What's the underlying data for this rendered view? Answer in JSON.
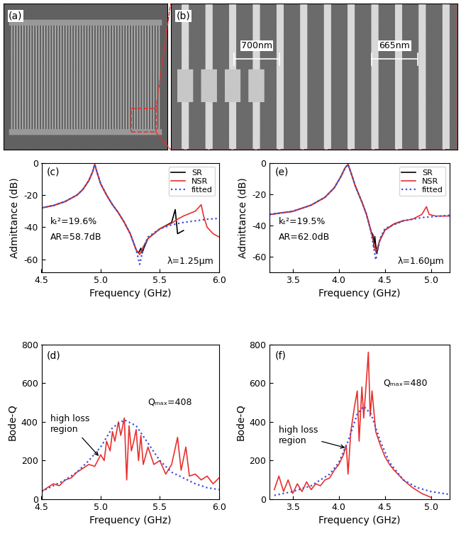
{
  "images": [
    {
      "panel": "(a)"
    },
    {
      "panel": "(b)",
      "annotations": [
        "700nm",
        "665nm"
      ]
    }
  ],
  "chart_data": [
    {
      "type": "line",
      "panel": "(c)",
      "x_label": "Frequency (GHz)",
      "y_label": "Admittance (dB)",
      "xlim": [
        4.5,
        6.0
      ],
      "xticks": [
        4.5,
        5.0,
        5.5,
        6.0
      ],
      "ylim": [
        -68,
        0
      ],
      "yticks": [
        -60,
        -40,
        -20,
        0
      ],
      "legend": "upper right",
      "annotations": [
        "kₜ²=19.6%",
        "AR=58.7dB",
        "λ=1.25μm"
      ],
      "series": [
        {
          "name": "SR",
          "color": "#000000",
          "line_style": "solid",
          "x": [
            4.5,
            4.6,
            4.7,
            4.8,
            4.85,
            4.9,
            4.93,
            4.95,
            4.97,
            5.0,
            5.05,
            5.1,
            5.15,
            5.2,
            5.25,
            5.3,
            5.32,
            5.34,
            5.35,
            5.37,
            5.4,
            5.5,
            5.6,
            5.63,
            5.65,
            5.7
          ],
          "values": [
            -28,
            -26.5,
            -24,
            -20,
            -16.5,
            -11,
            -6,
            -1,
            -6,
            -13,
            -20,
            -26,
            -31,
            -37,
            -44,
            -54,
            -56,
            -53,
            -56,
            -52,
            -47,
            -41,
            -37,
            -29,
            -44,
            -42
          ]
        },
        {
          "name": "NSR",
          "color": "#e8312f",
          "line_style": "solid",
          "x": [
            4.5,
            4.6,
            4.7,
            4.8,
            4.85,
            4.9,
            4.93,
            4.95,
            4.97,
            5.0,
            5.05,
            5.1,
            5.15,
            5.2,
            5.25,
            5.3,
            5.33,
            5.36,
            5.4,
            5.5,
            5.6,
            5.65,
            5.7,
            5.8,
            5.85,
            5.87,
            5.9,
            5.95,
            6.0
          ],
          "values": [
            -28,
            -26.5,
            -24,
            -20,
            -16.5,
            -11,
            -6,
            -1,
            -6,
            -13,
            -20,
            -26,
            -31,
            -37,
            -44,
            -54,
            -57,
            -52,
            -47,
            -41,
            -37.5,
            -35,
            -33,
            -30,
            -26,
            -33,
            -40,
            -44,
            -46
          ]
        },
        {
          "name": "fitted",
          "color": "#3a4fd8",
          "line_style": "dotted",
          "x": [
            4.5,
            4.6,
            4.7,
            4.8,
            4.85,
            4.9,
            4.93,
            4.95,
            4.97,
            5.0,
            5.05,
            5.1,
            5.15,
            5.2,
            5.25,
            5.3,
            5.33,
            5.36,
            5.4,
            5.5,
            5.6,
            5.7,
            5.8,
            5.9,
            6.0
          ],
          "values": [
            -28,
            -26.5,
            -24,
            -20,
            -16.5,
            -11,
            -6,
            -1,
            -6,
            -13,
            -20,
            -26,
            -31,
            -37,
            -44,
            -54,
            -63,
            -53,
            -46,
            -41,
            -38.5,
            -37,
            -36,
            -35,
            -34.5
          ]
        }
      ]
    },
    {
      "type": "line",
      "panel": "(d)",
      "x_label": "Frequency (GHz)",
      "y_label": "Bode-Q",
      "xlim": [
        4.5,
        6.0
      ],
      "xticks": [
        4.5,
        5.0,
        5.5,
        6.0
      ],
      "ylim": [
        0,
        800
      ],
      "yticks": [
        0,
        200,
        400,
        600,
        800
      ],
      "annotations": [
        "high loss\nregion",
        "Qₘₐₓ=408"
      ],
      "series": [
        {
          "color": "#e8312f",
          "line_style": "solid",
          "x": [
            4.5,
            4.55,
            4.6,
            4.65,
            4.7,
            4.75,
            4.8,
            4.85,
            4.9,
            4.95,
            5.0,
            5.03,
            5.05,
            5.08,
            5.1,
            5.12,
            5.15,
            5.17,
            5.2,
            5.22,
            5.24,
            5.26,
            5.28,
            5.3,
            5.32,
            5.34,
            5.36,
            5.4,
            5.45,
            5.5,
            5.55,
            5.6,
            5.65,
            5.68,
            5.72,
            5.75,
            5.8,
            5.85,
            5.9,
            5.95,
            6.0
          ],
          "values": [
            40,
            60,
            80,
            70,
            100,
            110,
            140,
            160,
            180,
            170,
            230,
            200,
            300,
            250,
            350,
            300,
            400,
            330,
            420,
            100,
            380,
            250,
            300,
            360,
            200,
            330,
            180,
            270,
            180,
            200,
            130,
            180,
            320,
            150,
            270,
            120,
            130,
            100,
            120,
            80,
            110
          ]
        },
        {
          "color": "#3a4fd8",
          "line_style": "dotted",
          "x": [
            4.5,
            4.6,
            4.7,
            4.8,
            4.9,
            5.0,
            5.1,
            5.2,
            5.3,
            5.4,
            5.5,
            5.6,
            5.7,
            5.8,
            5.9,
            6.0
          ],
          "values": [
            40,
            70,
            100,
            140,
            200,
            270,
            370,
            410,
            380,
            290,
            200,
            140,
            110,
            80,
            60,
            50
          ]
        }
      ]
    },
    {
      "type": "line",
      "panel": "(e)",
      "x_label": "Frequency (GHz)",
      "y_label": "Admittance (dB)",
      "xlim": [
        3.25,
        5.2
      ],
      "xticks": [
        3.5,
        4.0,
        4.5,
        5.0
      ],
      "ylim": [
        -70,
        0
      ],
      "yticks": [
        -60,
        -40,
        -20,
        0
      ],
      "legend": "upper right",
      "annotations": [
        "kₜ²=19.5%",
        "AR=62.0dB",
        "λ=1.60μm"
      ],
      "series": [
        {
          "name": "SR",
          "color": "#000000",
          "line_style": "solid",
          "x": [
            3.25,
            3.5,
            3.7,
            3.85,
            3.95,
            4.02,
            4.07,
            4.1,
            4.13,
            4.18,
            4.25,
            4.3,
            4.35,
            4.37,
            4.38,
            4.39,
            4.41,
            4.44,
            4.5,
            4.6,
            4.7
          ],
          "values": [
            -33,
            -31,
            -27,
            -22,
            -16,
            -9,
            -3,
            -1,
            -6,
            -15,
            -25,
            -33,
            -44,
            -46,
            -54,
            -47,
            -58,
            -50,
            -43,
            -39,
            -37
          ]
        },
        {
          "name": "NSR",
          "color": "#e8312f",
          "line_style": "solid",
          "x": [
            3.25,
            3.5,
            3.7,
            3.85,
            3.95,
            4.02,
            4.07,
            4.1,
            4.13,
            4.18,
            4.25,
            4.3,
            4.35,
            4.4,
            4.45,
            4.5,
            4.6,
            4.7,
            4.8,
            4.9,
            4.95,
            4.98,
            5.05,
            5.2
          ],
          "values": [
            -33,
            -31,
            -27,
            -22,
            -16,
            -9,
            -3,
            -1,
            -6,
            -15,
            -25,
            -33,
            -44,
            -57,
            -49,
            -43,
            -39,
            -37,
            -36,
            -33,
            -28,
            -33,
            -34,
            -34
          ]
        },
        {
          "name": "fitted",
          "color": "#3a4fd8",
          "line_style": "dotted",
          "x": [
            3.25,
            3.5,
            3.7,
            3.85,
            3.95,
            4.02,
            4.07,
            4.1,
            4.13,
            4.18,
            4.25,
            4.3,
            4.35,
            4.4,
            4.45,
            4.5,
            4.7,
            4.9,
            5.1,
            5.2
          ],
          "values": [
            -33,
            -31,
            -27,
            -22,
            -16,
            -9,
            -3,
            -1,
            -6,
            -15,
            -25,
            -33,
            -44,
            -62,
            -48,
            -42,
            -37,
            -35,
            -34,
            -33.5
          ]
        }
      ]
    },
    {
      "type": "line",
      "panel": "(f)",
      "x_label": "Frequency (GHz)",
      "y_label": "Bode-Q",
      "xlim": [
        3.25,
        5.2
      ],
      "xticks": [
        3.5,
        4.0,
        4.5,
        5.0
      ],
      "ylim": [
        0,
        800
      ],
      "yticks": [
        0,
        200,
        400,
        600,
        800
      ],
      "annotations": [
        "high loss\nregion",
        "Qₘₐₓ=480"
      ],
      "series": [
        {
          "color": "#e8312f",
          "line_style": "solid",
          "x": [
            3.3,
            3.35,
            3.4,
            3.45,
            3.5,
            3.55,
            3.6,
            3.65,
            3.7,
            3.75,
            3.8,
            3.85,
            3.9,
            3.95,
            4.0,
            4.05,
            4.08,
            4.1,
            4.13,
            4.17,
            4.2,
            4.22,
            4.25,
            4.27,
            4.3,
            4.32,
            4.34,
            4.36,
            4.4,
            4.45,
            4.5,
            4.55,
            4.6,
            4.7,
            4.8,
            4.9,
            4.95,
            5.0
          ],
          "values": [
            50,
            120,
            40,
            100,
            30,
            80,
            40,
            90,
            50,
            80,
            70,
            100,
            110,
            150,
            180,
            230,
            280,
            130,
            350,
            480,
            560,
            300,
            580,
            420,
            620,
            760,
            430,
            560,
            350,
            280,
            220,
            180,
            150,
            100,
            60,
            30,
            20,
            10
          ]
        },
        {
          "color": "#3a4fd8",
          "line_style": "dotted",
          "x": [
            3.3,
            3.5,
            3.7,
            3.9,
            4.0,
            4.1,
            4.2,
            4.27,
            4.35,
            4.45,
            4.55,
            4.7,
            4.85,
            5.0,
            5.2
          ],
          "values": [
            20,
            40,
            70,
            130,
            190,
            300,
            440,
            480,
            440,
            300,
            190,
            100,
            60,
            40,
            25
          ]
        }
      ]
    }
  ]
}
